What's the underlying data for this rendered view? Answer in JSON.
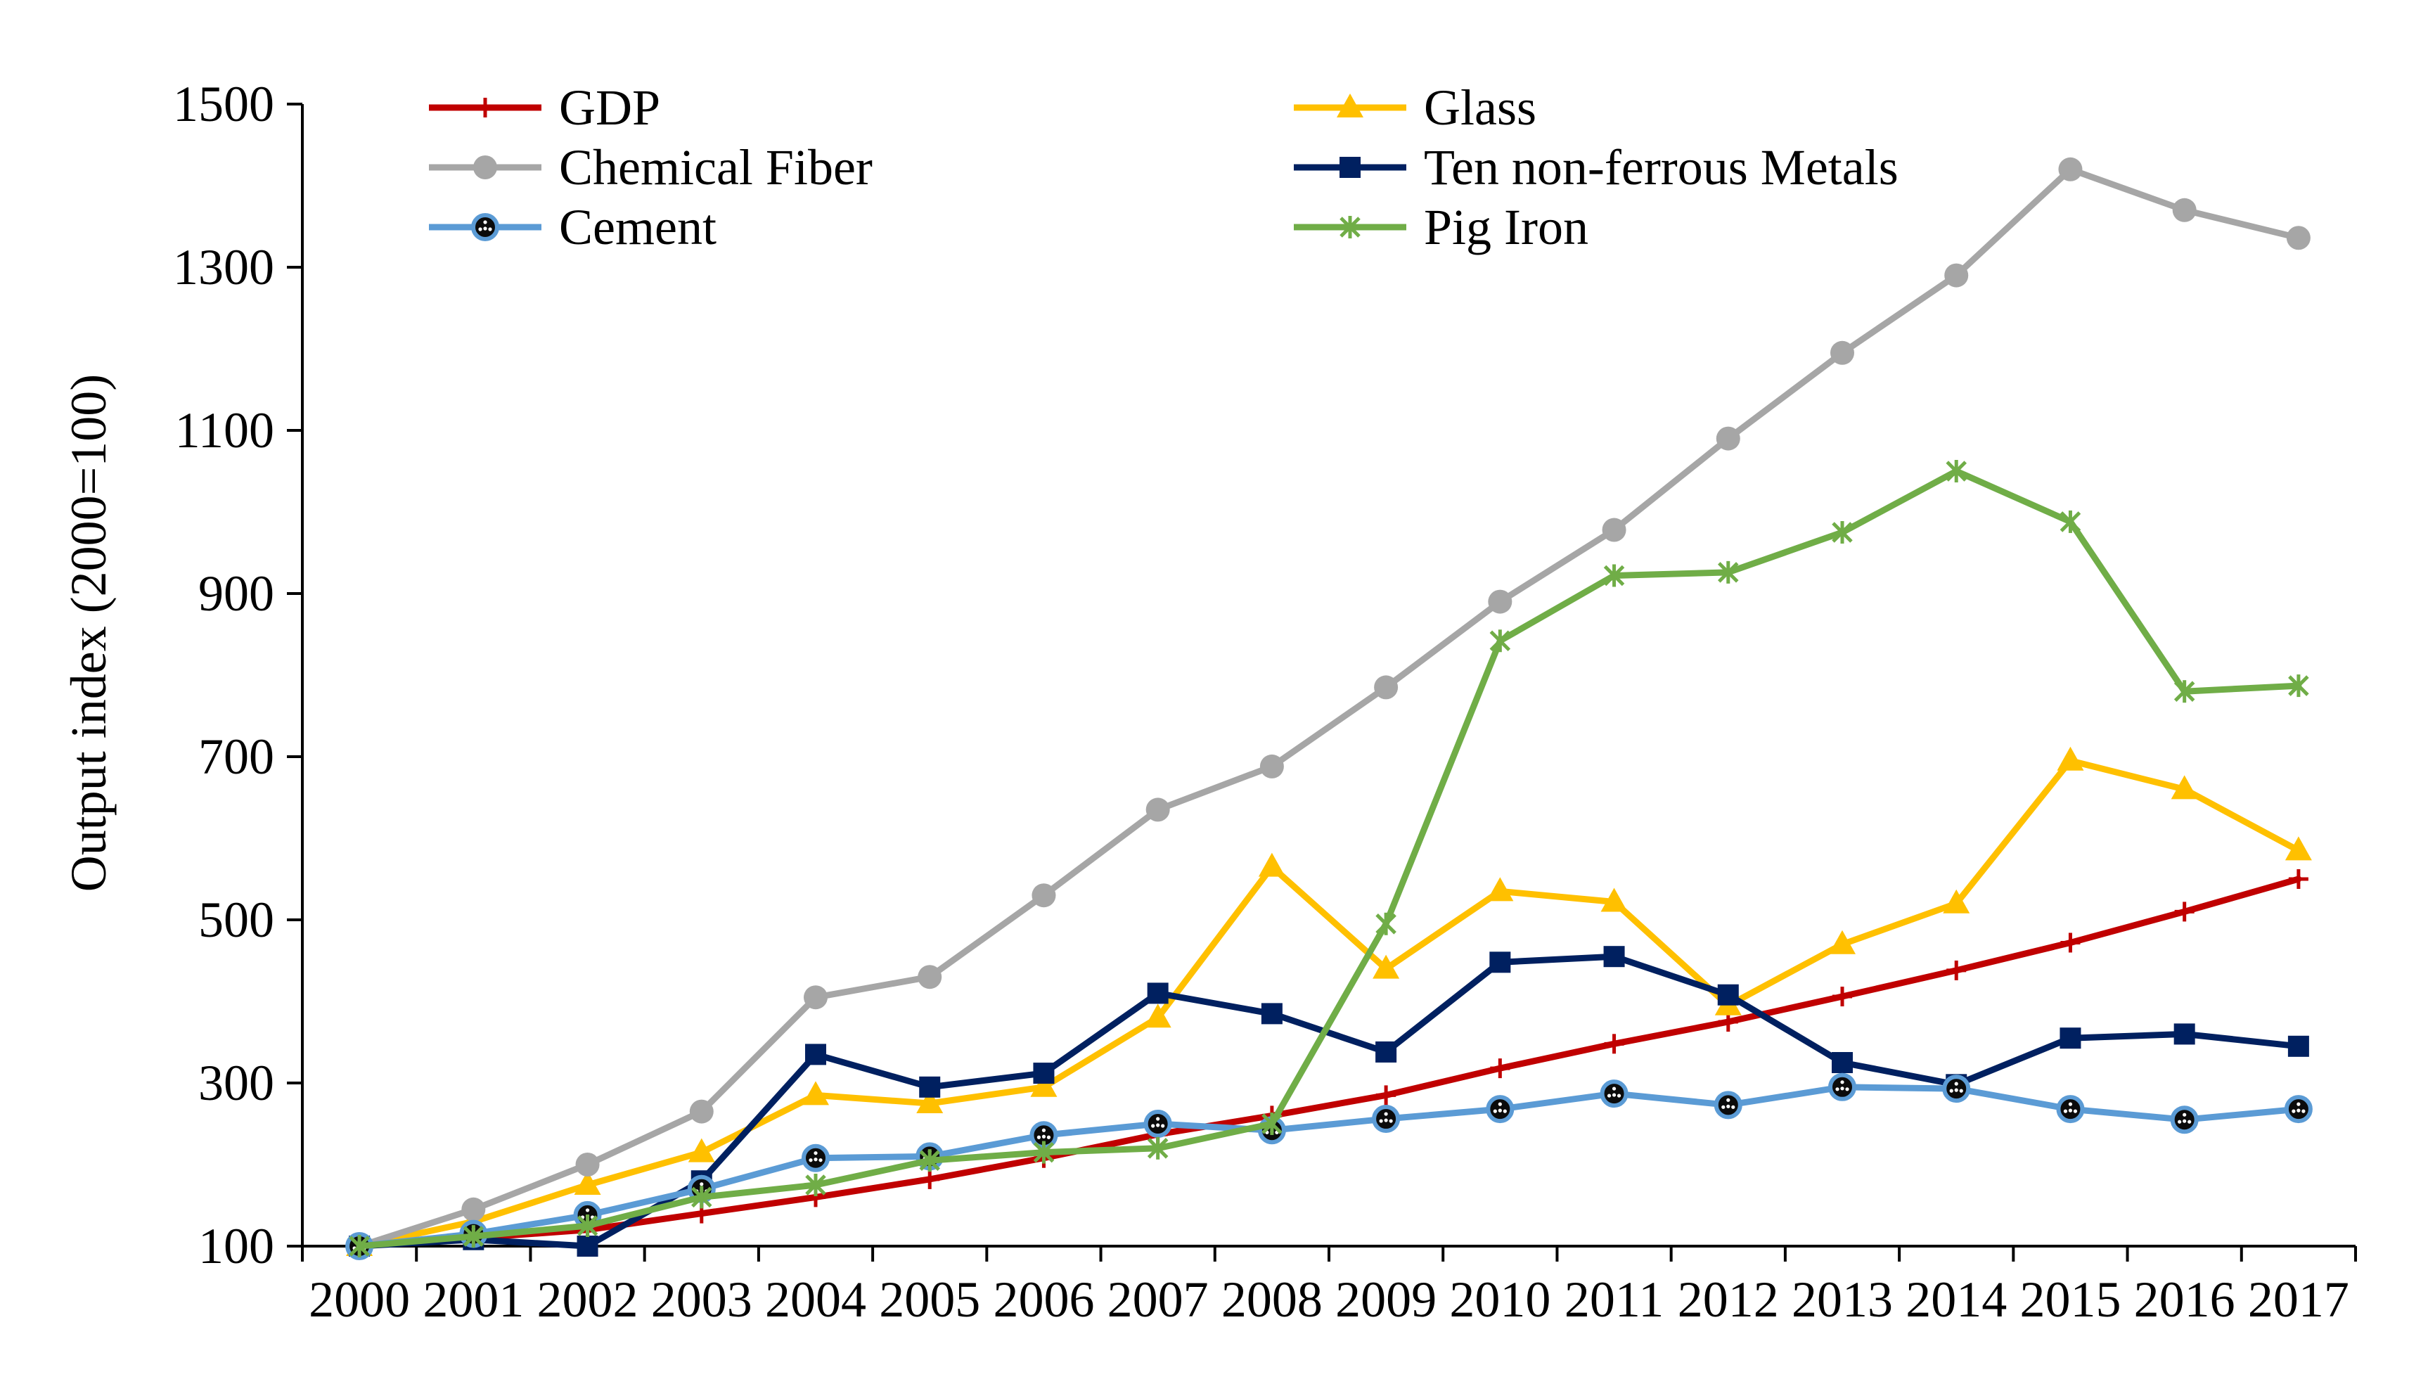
{
  "chart_data": {
    "type": "line",
    "title": "",
    "xlabel": "",
    "ylabel": "Output index (2000=100)",
    "ylim": [
      100,
      1500
    ],
    "yticks": [
      100,
      300,
      500,
      700,
      900,
      1100,
      1300,
      1500
    ],
    "grid": false,
    "legend_position": "top",
    "categories": [
      "2000",
      "2001",
      "2002",
      "2003",
      "2004",
      "2005",
      "2006",
      "2007",
      "2008",
      "2009",
      "2010",
      "2011",
      "2012",
      "2013",
      "2014",
      "2015",
      "2016",
      "2017"
    ],
    "series": [
      {
        "name": "GDP",
        "color": "#C00000",
        "marker": "plus",
        "values": [
          100,
          110,
          120,
          140,
          160,
          182,
          208,
          237,
          260,
          285,
          318,
          348,
          375,
          406,
          438,
          472,
          510,
          550
        ]
      },
      {
        "name": "Glass",
        "color": "#FFC000",
        "marker": "triangle",
        "values": [
          100,
          130,
          175,
          215,
          285,
          275,
          295,
          380,
          565,
          440,
          535,
          522,
          395,
          470,
          520,
          695,
          660,
          585
        ]
      },
      {
        "name": "Chemical Fiber",
        "color": "#A6A6A6",
        "marker": "circle",
        "values": [
          100,
          145,
          200,
          265,
          405,
          430,
          530,
          635,
          688,
          785,
          890,
          978,
          1090,
          1195,
          1290,
          1420,
          1370,
          1336
        ]
      },
      {
        "name": "Ten non-ferrous Metals",
        "color": "#002060",
        "marker": "square",
        "values": [
          100,
          108,
          100,
          180,
          335,
          295,
          312,
          410,
          385,
          338,
          448,
          455,
          408,
          325,
          298,
          355,
          360,
          345
        ]
      },
      {
        "name": "Cement",
        "color": "#5B9BD5",
        "marker": "dotted-circle",
        "values": [
          100,
          115,
          138,
          170,
          208,
          210,
          236,
          250,
          242,
          256,
          268,
          287,
          273,
          295,
          293,
          268,
          255,
          268
        ]
      },
      {
        "name": "Pig Iron",
        "color": "#70AD47",
        "marker": "star",
        "values": [
          100,
          112,
          125,
          160,
          175,
          205,
          215,
          220,
          250,
          495,
          842,
          922,
          926,
          975,
          1050,
          988,
          780,
          787
        ]
      }
    ]
  }
}
